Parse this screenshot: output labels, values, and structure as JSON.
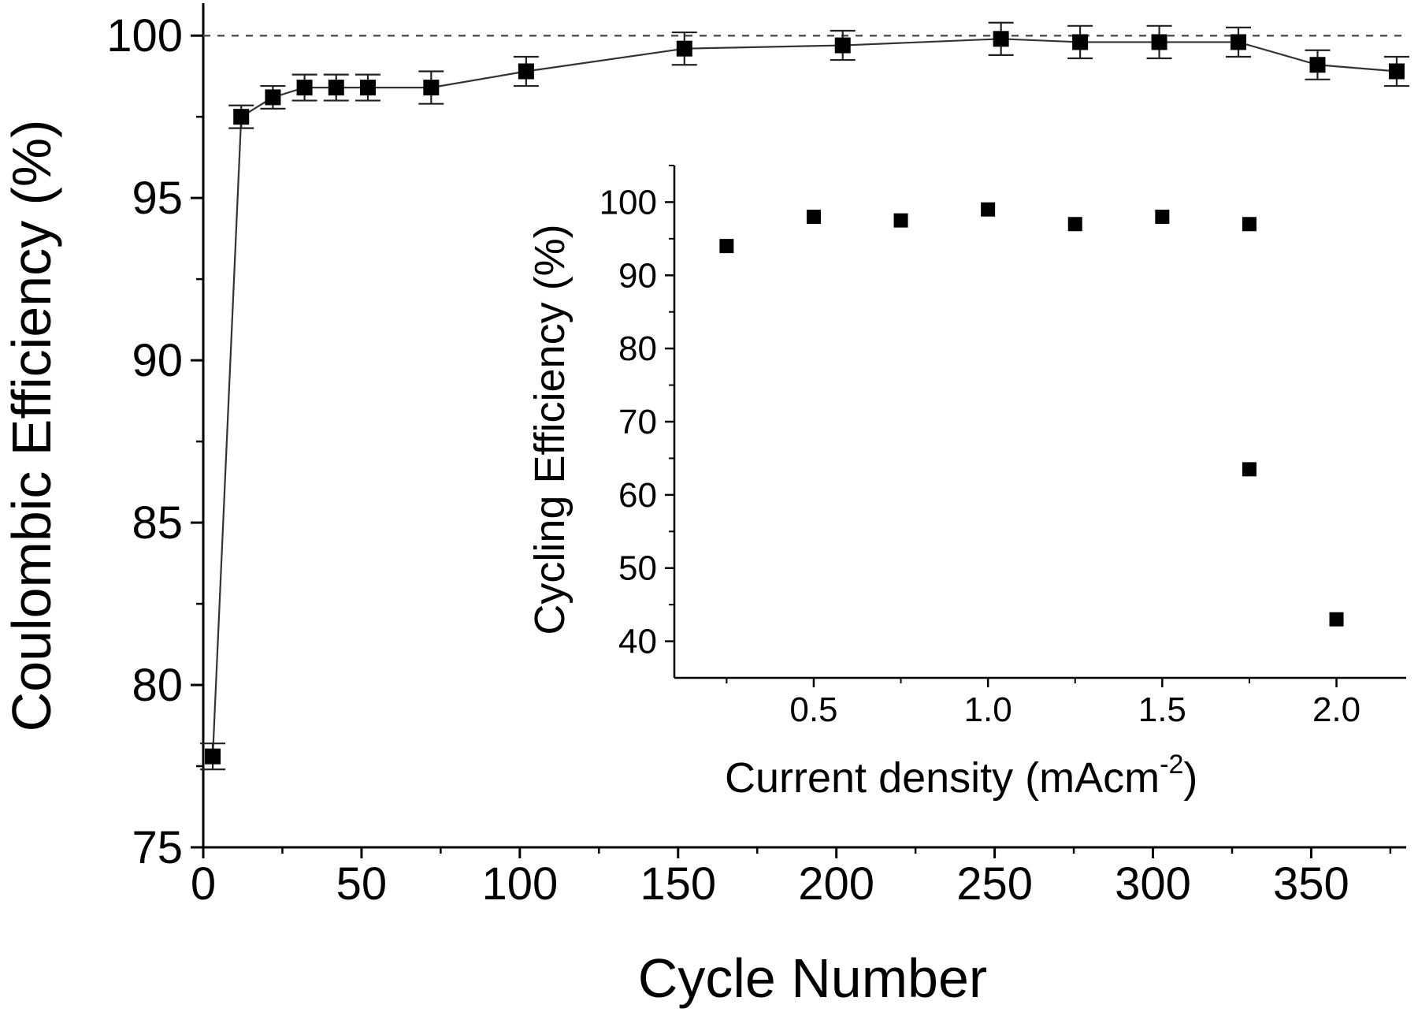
{
  "chart_data": [
    {
      "type": "scatter",
      "role": "main",
      "xlabel": "Cycle Number",
      "ylabel": "Coulombic Efficiency (%)",
      "xlim": [
        0,
        380
      ],
      "ylim": [
        75,
        101
      ],
      "xticks": [
        0,
        50,
        100,
        150,
        200,
        250,
        300,
        350
      ],
      "xtick_labels": [
        "0",
        "50",
        "100",
        "150",
        "200",
        "250",
        "300",
        "350"
      ],
      "yticks": [
        75,
        80,
        85,
        90,
        95,
        100
      ],
      "ytick_labels": [
        "75",
        "80",
        "85",
        "90",
        "95",
        "100"
      ],
      "reference_line": 100,
      "connected": true,
      "error_bars": true,
      "marker": "square",
      "series": [
        {
          "x": [
            3,
            12,
            22,
            32,
            42,
            52,
            72,
            102,
            152,
            202,
            252,
            277,
            302,
            327,
            352,
            377
          ],
          "y": [
            77.8,
            97.5,
            98.1,
            98.4,
            98.4,
            98.4,
            98.4,
            98.9,
            99.6,
            99.7,
            99.9,
            99.8,
            99.8,
            99.8,
            99.1,
            98.9
          ],
          "error": [
            0.4,
            0.35,
            0.35,
            0.4,
            0.4,
            0.4,
            0.5,
            0.45,
            0.5,
            0.45,
            0.5,
            0.5,
            0.5,
            0.45,
            0.45,
            0.45
          ]
        }
      ],
      "grid": false
    },
    {
      "type": "scatter",
      "role": "inset",
      "xlabel": "Current density (mAcm",
      "xlabel_superscript": "-2",
      "xlabel_suffix": ")",
      "ylabel": "Cycling Efficiency (%)",
      "xlim": [
        0.1,
        2.2
      ],
      "ylim": [
        35,
        105
      ],
      "xticks": [
        0.5,
        1.0,
        1.5,
        2.0
      ],
      "xtick_labels": [
        "0.5",
        "1.0",
        "1.5",
        "2.0"
      ],
      "yticks": [
        40,
        50,
        60,
        70,
        80,
        90,
        100
      ],
      "ytick_labels": [
        "40",
        "50",
        "60",
        "70",
        "80",
        "90",
        "100"
      ],
      "marker": "square",
      "series": [
        {
          "x": [
            0.25,
            0.5,
            0.75,
            1.0,
            1.25,
            1.5,
            1.75,
            1.75,
            2.0
          ],
          "y": [
            94,
            98,
            97.5,
            99,
            97,
            98,
            97,
            63.5,
            43
          ]
        }
      ],
      "grid": false
    }
  ]
}
